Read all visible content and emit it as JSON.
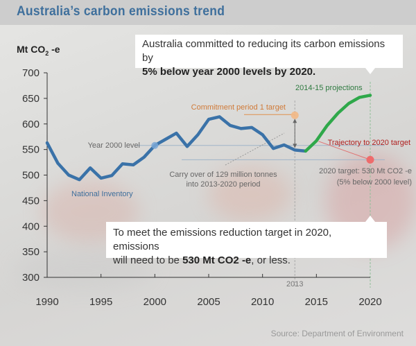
{
  "title": "Australia’s carbon emissions trend",
  "y_axis_label": {
    "main": "Mt CO",
    "sub": "2",
    "suffix": " -e"
  },
  "callouts": {
    "top": {
      "line1": "Australia committed to reducing its carbon emissions by",
      "line2_bold": "5% below year 2000 levels by 2020."
    },
    "bottom": {
      "line1": "To meet the emissions reduction target in 2020, emissions",
      "line2_pre": "will need to be ",
      "line2_bold": "530 Mt CO2 -e",
      "line2_post": ", or less."
    }
  },
  "source": "Source: Department of Environment",
  "colors": {
    "inventory": "#3a72a8",
    "projection": "#2fa84a",
    "commitment": "#e0904a",
    "target": "#e85a5a",
    "trajectory_text": "#b02020",
    "projection_text": "#2e7a40",
    "title": "#3e6f9c"
  },
  "chart_data": {
    "type": "line",
    "title": "Australia’s carbon emissions trend",
    "xlabel": "",
    "ylabel": "Mt CO2 -e",
    "xlim": [
      1990,
      2020
    ],
    "ylim": [
      300,
      700
    ],
    "x_ticks": [
      1990,
      1995,
      2000,
      2005,
      2010,
      2015,
      2020
    ],
    "y_ticks": [
      300,
      350,
      400,
      450,
      500,
      550,
      600,
      650,
      700
    ],
    "grid": false,
    "series": [
      {
        "name": "National Inventory",
        "x": [
          1990,
          1991,
          1992,
          1993,
          1994,
          1995,
          1996,
          1997,
          1998,
          1999,
          2000,
          2001,
          2002,
          2003,
          2004,
          2005,
          2006,
          2007,
          2008,
          2009,
          2010,
          2011,
          2012,
          2013,
          2014
        ],
        "y": [
          563,
          523,
          500,
          491,
          514,
          494,
          499,
          522,
          520,
          535,
          558,
          570,
          582,
          556,
          579,
          609,
          614,
          597,
          591,
          593,
          579,
          552,
          559,
          549,
          547
        ]
      },
      {
        "name": "2014-15 projections",
        "x": [
          2014,
          2015,
          2016,
          2017,
          2018,
          2019,
          2020
        ],
        "y": [
          547,
          567,
          597,
          621,
          640,
          652,
          656
        ]
      }
    ],
    "reference_lines": [
      {
        "label": "Year 2000 level",
        "y": 558
      },
      {
        "label": "2020 target",
        "y": 530
      }
    ],
    "points": [
      {
        "label": "Commitment period 1 target",
        "x": 2013,
        "y": 617
      },
      {
        "label": "2020 target: 530 Mt CO2 -e",
        "x": 2020,
        "y": 530
      },
      {
        "label": "Year 2000 level",
        "x": 2000,
        "y": 558
      }
    ],
    "vertical_markers": [
      {
        "label": "2013",
        "x": 2013
      },
      {
        "label": "2020",
        "x": 2020
      }
    ],
    "annotations": {
      "year2000": "Year 2000 level",
      "inventory": "National Inventory",
      "commitment": "Commitment period 1 target",
      "carry_line1": "Carry over of 129 million tonnes",
      "carry_line2": "into 2013-2020 period",
      "projections": "2014-15 projections",
      "trajectory": "Trajectory to 2020 target",
      "target_line1": "2020 target: 530 Mt CO2 -e",
      "target_line2": "(5% below 2000 level)",
      "marker_2013": "2013"
    }
  }
}
